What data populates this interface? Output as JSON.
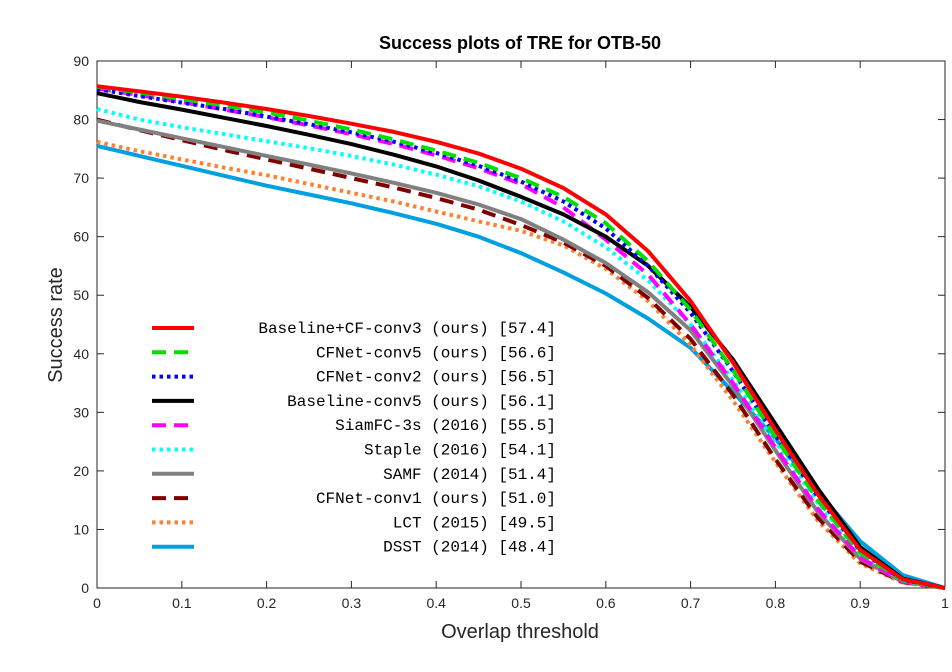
{
  "chart_data": {
    "type": "line",
    "title": "Success plots of TRE for OTB-50",
    "xlabel": "Overlap threshold",
    "ylabel": "Success rate",
    "xlim": [
      0,
      1
    ],
    "ylim": [
      0,
      90
    ],
    "xticks": [
      "0",
      "0.1",
      "0.2",
      "0.3",
      "0.4",
      "0.5",
      "0.6",
      "0.7",
      "0.8",
      "0.9",
      "1"
    ],
    "yticks": [
      "0",
      "10",
      "20",
      "30",
      "40",
      "50",
      "60",
      "70",
      "80",
      "90"
    ],
    "grid": false,
    "legend_position": "bottom-left",
    "x": [
      0,
      0.05,
      0.1,
      0.15,
      0.2,
      0.25,
      0.3,
      0.35,
      0.4,
      0.45,
      0.5,
      0.55,
      0.6,
      0.65,
      0.7,
      0.75,
      0.8,
      0.85,
      0.9,
      0.95,
      1
    ],
    "series": [
      {
        "name": "Baseline+CF-conv3 (ours) [57.4]",
        "color": "#ff0000",
        "style": "solid",
        "values": [
          85.7,
          84.8,
          83.9,
          82.9,
          81.8,
          80.6,
          79.3,
          77.9,
          76.2,
          74.2,
          71.6,
          68.3,
          63.8,
          57.5,
          49.0,
          38.5,
          27.0,
          16.0,
          6.5,
          1.5,
          0
        ]
      },
      {
        "name": "CFNet-conv5 (ours) [56.6]",
        "color": "#00e000",
        "style": "dashed",
        "values": [
          85.6,
          84.6,
          83.5,
          82.4,
          81.2,
          79.8,
          78.3,
          76.6,
          74.7,
          72.6,
          70.0,
          66.8,
          62.3,
          55.8,
          47.5,
          37.2,
          25.8,
          15.0,
          6.0,
          1.3,
          0
        ]
      },
      {
        "name": "CFNet-conv2 (ours) [56.5]",
        "color": "#0000ff",
        "style": "dotted",
        "values": [
          85.2,
          84.0,
          82.9,
          81.8,
          80.5,
          79.2,
          77.8,
          76.2,
          74.3,
          72.1,
          69.4,
          66.0,
          61.4,
          55.0,
          47.0,
          37.0,
          26.0,
          15.6,
          6.4,
          1.4,
          0
        ]
      },
      {
        "name": "Baseline-conv5 (ours) [56.1]",
        "color": "#000000",
        "style": "solid",
        "values": [
          84.5,
          83.0,
          81.7,
          80.3,
          78.9,
          77.4,
          75.8,
          74.0,
          72.0,
          69.6,
          66.8,
          63.8,
          60.0,
          55.0,
          48.0,
          39.0,
          28.0,
          17.0,
          7.0,
          1.6,
          0
        ]
      },
      {
        "name": "SiamFC-3s (2016) [55.5]",
        "color": "#ff00ff",
        "style": "dashed",
        "values": [
          85.3,
          84.2,
          83.0,
          81.7,
          80.4,
          79.0,
          77.5,
          75.8,
          73.9,
          71.7,
          69.0,
          65.0,
          59.5,
          53.5,
          45.0,
          35.0,
          24.0,
          13.5,
          5.2,
          1.1,
          0
        ]
      },
      {
        "name": "Staple (2016) [54.1]",
        "color": "#00ffff",
        "style": "dotted",
        "values": [
          81.8,
          80.0,
          78.7,
          77.5,
          76.3,
          75.1,
          73.8,
          72.3,
          70.6,
          68.6,
          66.0,
          62.6,
          58.2,
          52.5,
          45.0,
          35.5,
          25.0,
          14.5,
          5.8,
          1.3,
          0
        ]
      },
      {
        "name": "SAMF (2014) [51.4]",
        "color": "#808080",
        "style": "solid",
        "values": [
          79.8,
          78.3,
          76.8,
          75.3,
          73.8,
          72.3,
          70.8,
          69.2,
          67.5,
          65.5,
          63.0,
          59.5,
          55.5,
          50.5,
          44.0,
          34.5,
          23.5,
          13.0,
          5.0,
          1.1,
          0
        ]
      },
      {
        "name": "CFNet-conv1 (ours) [51.0]",
        "color": "#800000",
        "style": "dashed",
        "values": [
          80.0,
          78.2,
          76.5,
          74.8,
          73.2,
          71.6,
          70.0,
          68.4,
          66.6,
          64.6,
          62.0,
          59.0,
          55.0,
          49.5,
          42.5,
          33.0,
          22.0,
          12.0,
          4.5,
          1.0,
          0
        ]
      },
      {
        "name": "LCT (2015) [49.5]",
        "color": "#ff8030",
        "style": "dotted",
        "values": [
          76.2,
          74.6,
          73.2,
          71.8,
          70.5,
          69.0,
          67.5,
          66.0,
          64.3,
          62.6,
          61.0,
          58.5,
          54.5,
          49.0,
          41.5,
          32.0,
          21.5,
          11.5,
          4.2,
          0.9,
          0
        ]
      },
      {
        "name": "DSST (2014) [48.4]",
        "color": "#00a0e0",
        "style": "solid",
        "values": [
          75.5,
          73.8,
          72.1,
          70.4,
          68.7,
          67.2,
          65.7,
          64.0,
          62.2,
          60.0,
          57.2,
          53.9,
          50.3,
          46.0,
          41.0,
          33.5,
          25.5,
          16.5,
          8.0,
          2.2,
          0
        ]
      }
    ]
  }
}
